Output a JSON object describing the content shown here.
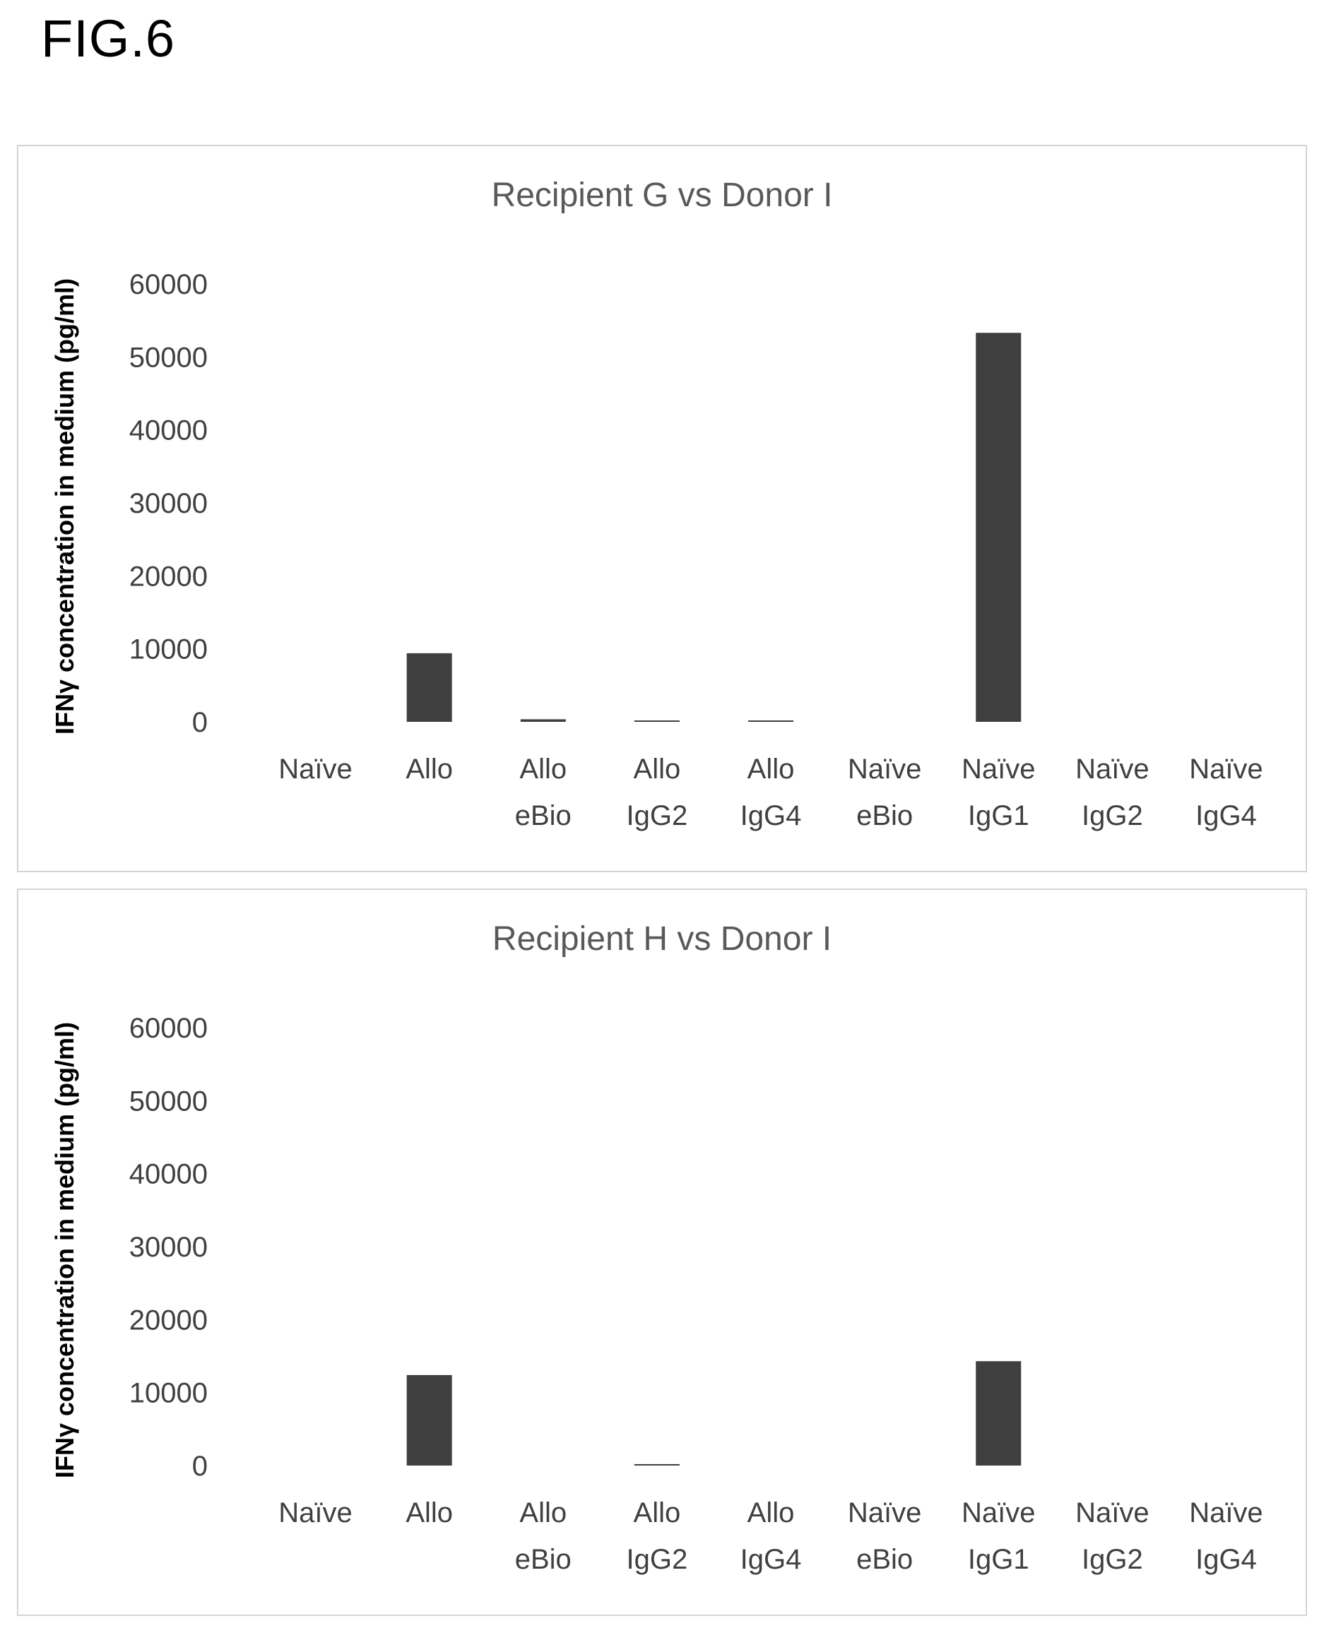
{
  "figure_label": "FIG.6",
  "chart_data": [
    {
      "type": "bar",
      "title": "Recipient G vs Donor I",
      "ylabel": "IFNγ concentration in medium (pg/ml)",
      "xlabel": "",
      "ylim": [
        0,
        60000
      ],
      "yticks": [
        "0",
        "10000",
        "20000",
        "30000",
        "40000",
        "50000",
        "60000"
      ],
      "grid": false,
      "legend": "none",
      "categories": [
        [
          "Naïve"
        ],
        [
          "Allo"
        ],
        [
          "Allo",
          "eBio"
        ],
        [
          "Allo",
          "IgG2"
        ],
        [
          "Allo",
          "IgG4"
        ],
        [
          "Naïve",
          "eBio"
        ],
        [
          "Naïve",
          "IgG1"
        ],
        [
          "Naïve",
          "IgG2"
        ],
        [
          "Naïve",
          "IgG4"
        ]
      ],
      "values": [
        0,
        9400,
        350,
        150,
        150,
        0,
        53300,
        0,
        0
      ]
    },
    {
      "type": "bar",
      "title": "Recipient H vs Donor I",
      "ylabel": "IFNγ concentration in medium (pg/ml)",
      "xlabel": "",
      "ylim": [
        0,
        60000
      ],
      "yticks": [
        "0",
        "10000",
        "20000",
        "30000",
        "40000",
        "50000",
        "60000"
      ],
      "grid": false,
      "legend": "none",
      "categories": [
        [
          "Naïve"
        ],
        [
          "Allo"
        ],
        [
          "Allo",
          "eBio"
        ],
        [
          "Allo",
          "IgG2"
        ],
        [
          "Allo",
          "IgG4"
        ],
        [
          "Naïve",
          "eBio"
        ],
        [
          "Naïve",
          "IgG1"
        ],
        [
          "Naïve",
          "IgG2"
        ],
        [
          "Naïve",
          "IgG4"
        ]
      ],
      "values": [
        0,
        12400,
        0,
        200,
        0,
        0,
        14300,
        0,
        0
      ]
    }
  ]
}
